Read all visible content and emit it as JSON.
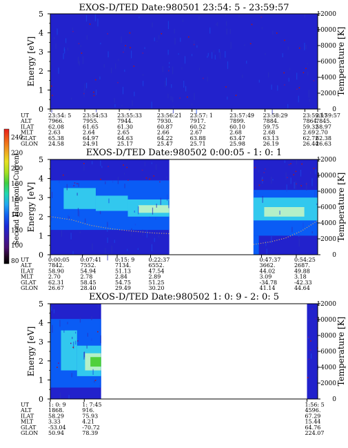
{
  "colors": {
    "background_level": "#2222cc",
    "mid_level": "#0a5cf5",
    "high_level": "#32c8ee",
    "peak_level": "#b4f0c8",
    "max_level": "#50d03c",
    "temperature_trace": "#c8a070",
    "noise_red": "#aa1820",
    "noise_purple": "#6a1a8c"
  },
  "colorbar": {
    "label": "Second Harmonic Current",
    "ticks": [
      "240",
      "220",
      "200",
      "180",
      "160",
      "140",
      "120",
      "100",
      "80"
    ]
  },
  "chart_data": [
    {
      "type": "heatmap",
      "title": "EXOS-D/TED   Date:980501  23:54: 5 - 23:59:57",
      "ylabel": "Energy [eV]",
      "y2label": "Temperature [K]",
      "ylim": [
        0,
        5
      ],
      "y_ticks": [
        "0",
        "1",
        "2",
        "3",
        "4",
        "5"
      ],
      "y2lim": [
        0,
        12000
      ],
      "y2_ticks": [
        "0",
        "2000",
        "4000",
        "6000",
        "8000",
        "10000",
        "12000"
      ],
      "ephemeris_labels": [
        "UT",
        "ALT",
        "ILAT",
        "MLT",
        "GLAT",
        "GLON"
      ],
      "ephemeris_columns": [
        {
          "pos": 0.0,
          "UT": "23:54: 5",
          "ALT": "7966.",
          "ILAT": "62.08",
          "MLT": "2.63",
          "GLAT": "65.38",
          "GLON": "24.58"
        },
        {
          "pos": 0.129,
          "UT": "23:54:53",
          "ALT": "7955.",
          "ILAT": "61.65",
          "MLT": "2.64",
          "GLAT": "64.97",
          "GLON": "24.91"
        },
        {
          "pos": 0.258,
          "UT": "23:55:33",
          "ALT": "7944.",
          "ILAT": "61.30",
          "MLT": "2.65",
          "GLAT": "64.63",
          "GLON": "25.17"
        },
        {
          "pos": 0.407,
          "UT": "23:56:21",
          "ALT": "7930.",
          "ILAT": "60.87",
          "MLT": "2.66",
          "GLAT": "64.22",
          "GLON": "25.47"
        },
        {
          "pos": 0.53,
          "UT": "23:57: 1",
          "ALT": "7917.",
          "ILAT": "60.52",
          "MLT": "2.67",
          "GLAT": "63.88",
          "GLON": "25.71"
        },
        {
          "pos": 0.678,
          "UT": "23:57:49",
          "ALT": "7899.",
          "ILAT": "60.10",
          "MLT": "2.68",
          "GLAT": "63.47",
          "GLON": "25.98"
        },
        {
          "pos": 0.803,
          "UT": "23:58:29",
          "ALT": "7884.",
          "ILAT": "59.75",
          "MLT": "2.68",
          "GLAT": "63.13",
          "GLON": "26.19"
        },
        {
          "pos": 0.952,
          "UT": "23:59:17",
          "ALT": "7864.",
          "ILAT": "59.32",
          "MLT": "2.69",
          "GLAT": "62.72",
          "GLON": "26.44"
        },
        {
          "pos": 1.0,
          "UT": "23:59:57",
          "ALT": "7845.",
          "ILAT": "58.97",
          "MLT": "2.70",
          "GLAT": "62.38",
          "GLON": "26.63"
        }
      ],
      "data_segments": [
        {
          "from": 0.0,
          "to": 1.0
        }
      ],
      "bands": [
        {
          "from": 0.0,
          "to": 1.0,
          "ylo": 0.0,
          "yhi": 5.0,
          "color": "#2222cc"
        }
      ],
      "scatter_noise": {
        "count": 40,
        "color": "#aa1820",
        "ylo": 0.3,
        "yhi": 4.9
      },
      "temperature_curve": []
    },
    {
      "type": "heatmap",
      "title": "EXOS-D/TED   Date:980502  0:00:05 - 1: 0: 1",
      "ylabel": "Energy [eV]",
      "y2label": "Temperature [K]",
      "ylim": [
        0,
        5
      ],
      "y_ticks": [
        "0",
        "1",
        "2",
        "3",
        "4",
        "5"
      ],
      "y2lim": [
        0,
        12000
      ],
      "y2_ticks": [
        "0",
        "2000",
        "4000",
        "6000",
        "8000",
        "10000",
        "12000"
      ],
      "ephemeris_labels": [
        "UT",
        "ALT",
        "ILAT",
        "MLT",
        "GLAT",
        "GLON"
      ],
      "ephemeris_columns": [
        {
          "pos": 0.0,
          "UT": "0:00:05",
          "ALT": "7842.",
          "ILAT": "58.90",
          "MLT": "2.70",
          "GLAT": "62.31",
          "GLON": "26.67"
        },
        {
          "pos": 0.12,
          "UT": "0:07:41",
          "ALT": "7552.",
          "ILAT": "54.94",
          "MLT": "2.78",
          "GLAT": "58.45",
          "GLON": "28.40"
        },
        {
          "pos": 0.25,
          "UT": "0:15: 9",
          "ALT": "7134.",
          "ILAT": "51.13",
          "MLT": "2.84",
          "GLAT": "54.75",
          "GLON": "29.49"
        },
        {
          "pos": 0.375,
          "UT": "0:22:37",
          "ALT": "6552.",
          "ILAT": "47.54",
          "MLT": "2.89",
          "GLAT": "51.25",
          "GLON": "30.20"
        },
        {
          "pos": 0.79,
          "UT": "0:47:37",
          "ALT": "3662.",
          "ILAT": "44.02",
          "MLT": "3.09",
          "GLAT": "-34.78",
          "GLON": "41.14"
        },
        {
          "pos": 0.92,
          "UT": "0:54:25",
          "ALT": "2687.",
          "ILAT": "49.88",
          "MLT": "3.18",
          "GLAT": "-42.33",
          "GLON": "44.64"
        }
      ],
      "data_segments": [
        {
          "from": 0.0,
          "to": 0.445
        },
        {
          "from": 0.76,
          "to": 1.0
        }
      ],
      "bands": [
        {
          "from": 0.0,
          "to": 0.445,
          "ylo": 0.0,
          "yhi": 5.0,
          "color": "#2222cc"
        },
        {
          "from": 0.0,
          "to": 0.445,
          "ylo": 1.3,
          "yhi": 3.9,
          "color": "#0a5cf5"
        },
        {
          "from": 0.05,
          "to": 0.17,
          "ylo": 2.4,
          "yhi": 3.5,
          "color": "#32c8ee"
        },
        {
          "from": 0.17,
          "to": 0.29,
          "ylo": 2.3,
          "yhi": 3.1,
          "color": "#32c8ee"
        },
        {
          "from": 0.29,
          "to": 0.445,
          "ylo": 2.0,
          "yhi": 2.9,
          "color": "#32c8ee"
        },
        {
          "from": 0.33,
          "to": 0.445,
          "ylo": 2.2,
          "yhi": 2.6,
          "color": "#b4f0c8"
        },
        {
          "from": 0.76,
          "to": 1.0,
          "ylo": 0.0,
          "yhi": 5.0,
          "color": "#2222cc"
        },
        {
          "from": 0.76,
          "to": 1.0,
          "ylo": 1.0,
          "yhi": 3.4,
          "color": "#0a5cf5"
        },
        {
          "from": 0.76,
          "to": 1.0,
          "ylo": 1.8,
          "yhi": 3.0,
          "color": "#32c8ee"
        },
        {
          "from": 0.8,
          "to": 0.95,
          "ylo": 2.0,
          "yhi": 2.5,
          "color": "#b4f0c8"
        },
        {
          "from": 0.76,
          "to": 0.78,
          "ylo": 0.0,
          "yhi": 1.0,
          "color": "#0a5cf5"
        }
      ],
      "scatter_noise": {
        "count": 30,
        "color": "#aa1820",
        "ylo": 3.6,
        "yhi": 4.9
      },
      "temperature_curve": [
        {
          "t": 0.0,
          "T": 4800
        },
        {
          "t": 0.08,
          "T": 4400
        },
        {
          "t": 0.15,
          "T": 3700
        },
        {
          "t": 0.22,
          "T": 3300
        },
        {
          "t": 0.3,
          "T": 3000
        },
        {
          "t": 0.38,
          "T": 2750
        },
        {
          "t": 0.445,
          "T": 2650
        },
        {
          "t": 0.76,
          "T": 1300
        },
        {
          "t": 0.82,
          "T": 1600
        },
        {
          "t": 0.88,
          "T": 2100
        },
        {
          "t": 0.94,
          "T": 3000
        },
        {
          "t": 1.0,
          "T": 4300
        }
      ]
    },
    {
      "type": "heatmap",
      "title": "EXOS-D/TED   Date:980502  1: 0: 9 - 2: 0: 5",
      "ylabel": "Energy [eV]",
      "y2label": "Temperature [K]",
      "ylim": [
        0,
        5
      ],
      "y_ticks": [
        "0",
        "1",
        "2",
        "3",
        "4",
        "5"
      ],
      "y2lim": [
        0,
        12000
      ],
      "y2_ticks": [
        "0",
        "2000",
        "4000",
        "6000",
        "8000",
        "10000",
        "12000"
      ],
      "ephemeris_labels": [
        "UT",
        "ALT",
        "ILAT",
        "MLT",
        "GLAT",
        "GLON"
      ],
      "ephemeris_columns": [
        {
          "pos": 0.0,
          "UT": "1: 0: 9",
          "ALT": "1868.",
          "ILAT": "58.29",
          "MLT": "3.33",
          "GLAT": "-53.04",
          "GLON": "50.94"
        },
        {
          "pos": 0.127,
          "UT": "1: 7:45",
          "ALT": "916.",
          "ILAT": "75.93",
          "MLT": "4.21",
          "GLAT": "-70.72",
          "GLON": "78.39"
        },
        {
          "pos": 0.96,
          "UT": "1:56: 5",
          "ALT": "4596.",
          "ILAT": "67.29",
          "MLT": "15.44",
          "GLAT": "64.76",
          "GLON": "224.07"
        }
      ],
      "data_segments": [
        {
          "from": 0.0,
          "to": 0.19
        },
        {
          "from": 0.96,
          "to": 1.0
        }
      ],
      "bands": [
        {
          "from": 0.0,
          "to": 0.19,
          "ylo": 0.0,
          "yhi": 5.0,
          "color": "#2222cc"
        },
        {
          "from": 0.0,
          "to": 0.19,
          "ylo": 0.6,
          "yhi": 4.2,
          "color": "#0a5cf5"
        },
        {
          "from": 0.04,
          "to": 0.1,
          "ylo": 1.5,
          "yhi": 3.6,
          "color": "#32c8ee"
        },
        {
          "from": 0.1,
          "to": 0.19,
          "ylo": 1.2,
          "yhi": 2.8,
          "color": "#32c8ee"
        },
        {
          "from": 0.13,
          "to": 0.19,
          "ylo": 1.5,
          "yhi": 2.4,
          "color": "#b4f0c8"
        },
        {
          "from": 0.15,
          "to": 0.19,
          "ylo": 1.7,
          "yhi": 2.2,
          "color": "#50d03c"
        },
        {
          "from": 0.96,
          "to": 1.0,
          "ylo": 0.0,
          "yhi": 5.0,
          "color": "#2222cc"
        }
      ],
      "scatter_noise": {
        "count": 15,
        "color": "#aa1820",
        "ylo": 0.5,
        "yhi": 4.8
      },
      "temperature_curve": []
    }
  ]
}
